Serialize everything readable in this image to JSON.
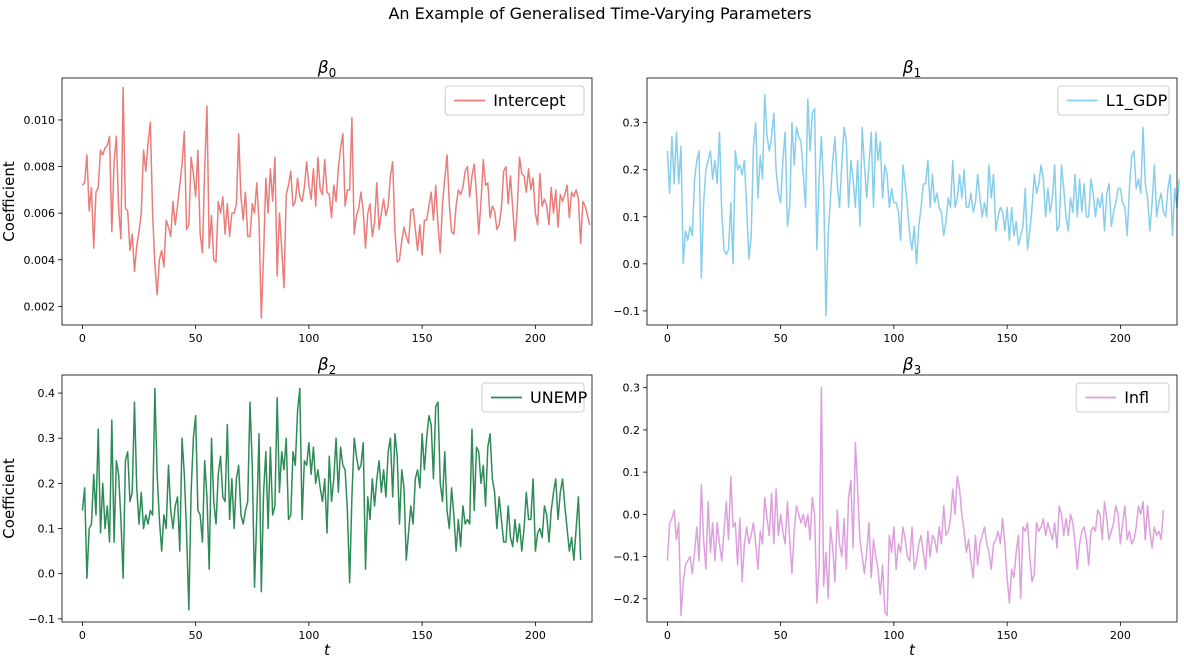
{
  "figure": {
    "title": "An Example of Generalised Time-Varying Parameters"
  },
  "chart_data": [
    {
      "type": "line",
      "title": "β0",
      "title_base": "β",
      "title_sub": "0",
      "xlabel": "",
      "ylabel": "Coefficient",
      "xlim": [
        -9,
        225
      ],
      "ylim": [
        0.0012,
        0.0118
      ],
      "xticks": [
        0,
        50,
        100,
        150,
        200
      ],
      "yticks": [
        0.002,
        0.004,
        0.006,
        0.008,
        0.01
      ],
      "ytick_labels": [
        "0.002",
        "0.004",
        "0.006",
        "0.008",
        "0.010"
      ],
      "legend_position": "upper right",
      "series": [
        {
          "name": "Intercept",
          "color": "#e97d7a",
          "x_start": 0,
          "values": [
            0.0072,
            0.0073,
            0.0085,
            0.0061,
            0.0071,
            0.0045,
            0.0069,
            0.0071,
            0.0087,
            0.0085,
            0.0088,
            0.0089,
            0.0093,
            0.0052,
            0.0082,
            0.0093,
            0.0062,
            0.0049,
            0.0114,
            0.0062,
            0.0061,
            0.0044,
            0.0051,
            0.0035,
            0.0046,
            0.0052,
            0.006,
            0.0087,
            0.0078,
            0.009,
            0.0099,
            0.006,
            0.0038,
            0.0025,
            0.004,
            0.0044,
            0.0037,
            0.0057,
            0.0054,
            0.005,
            0.0065,
            0.0055,
            0.0063,
            0.0072,
            0.0081,
            0.0095,
            0.0053,
            0.0055,
            0.0084,
            0.0077,
            0.0067,
            0.0087,
            0.0051,
            0.0043,
            0.0079,
            0.0106,
            0.0045,
            0.0059,
            0.004,
            0.0039,
            0.0065,
            0.006,
            0.0067,
            0.0051,
            0.0064,
            0.005,
            0.006,
            0.006,
            0.0064,
            0.0094,
            0.0067,
            0.0057,
            0.0069,
            0.005,
            0.005,
            0.0064,
            0.006,
            0.0073,
            0.0056,
            0.0015,
            0.0042,
            0.0075,
            0.006,
            0.0079,
            0.0065,
            0.0084,
            0.0033,
            0.006,
            0.0045,
            0.0028,
            0.0068,
            0.0072,
            0.0078,
            0.0063,
            0.0065,
            0.0075,
            0.0067,
            0.0065,
            0.0071,
            0.0082,
            0.0072,
            0.0066,
            0.0079,
            0.0063,
            0.0084,
            0.007,
            0.0068,
            0.0083,
            0.0069,
            0.0068,
            0.0058,
            0.0072,
            0.0065,
            0.0079,
            0.0088,
            0.0094,
            0.0063,
            0.007,
            0.007,
            0.0101,
            0.0051,
            0.0059,
            0.0062,
            0.0069,
            0.0061,
            0.0045,
            0.006,
            0.0064,
            0.005,
            0.0056,
            0.0073,
            0.0053,
            0.006,
            0.0066,
            0.0059,
            0.0063,
            0.0076,
            0.0082,
            0.0052,
            0.0039,
            0.004,
            0.0048,
            0.0054,
            0.005,
            0.0047,
            0.0061,
            0.0062,
            0.0053,
            0.0044,
            0.0055,
            0.0042,
            0.0057,
            0.0057,
            0.0063,
            0.0069,
            0.0057,
            0.0072,
            0.0055,
            0.0043,
            0.0064,
            0.0075,
            0.0085,
            0.0064,
            0.0052,
            0.0051,
            0.0063,
            0.007,
            0.0068,
            0.0071,
            0.0078,
            0.008,
            0.0067,
            0.0076,
            0.0081,
            0.0068,
            0.0051,
            0.0065,
            0.0083,
            0.0072,
            0.0073,
            0.0058,
            0.0063,
            0.0061,
            0.0053,
            0.0055,
            0.0062,
            0.0078,
            0.008,
            0.0064,
            0.0076,
            0.0062,
            0.0048,
            0.0062,
            0.0084,
            0.0077,
            0.0076,
            0.0069,
            0.0079,
            0.007,
            0.0075,
            0.006,
            0.0055,
            0.0077,
            0.0063,
            0.0066,
            0.0063,
            0.0055,
            0.0071,
            0.006,
            0.007,
            0.0054,
            0.0068,
            0.0065,
            0.0068,
            0.0072,
            0.0058,
            0.0069,
            0.0067,
            0.007,
            0.0066,
            0.0047,
            0.0065,
            0.0063,
            0.0059,
            0.0055
          ]
        }
      ]
    },
    {
      "type": "line",
      "title": "β1",
      "title_base": "β",
      "title_sub": "1",
      "xlabel": "",
      "ylabel": "",
      "xlim": [
        -9,
        225
      ],
      "ylim": [
        -0.13,
        0.395
      ],
      "xticks": [
        0,
        50,
        100,
        150,
        200
      ],
      "yticks": [
        -0.1,
        0.0,
        0.1,
        0.2,
        0.3
      ],
      "ytick_labels": [
        "−0.1",
        "0.0",
        "0.1",
        "0.2",
        "0.3"
      ],
      "legend_position": "upper right",
      "series": [
        {
          "name": "L1_GDP",
          "color": "#87ceeb",
          "x_start": 0,
          "values": [
            0.24,
            0.15,
            0.27,
            0.17,
            0.28,
            0.17,
            0.25,
            0.0,
            0.07,
            0.05,
            0.08,
            0.06,
            0.18,
            0.22,
            0.24,
            -0.03,
            0.13,
            0.2,
            0.22,
            0.24,
            0.18,
            0.22,
            0.17,
            0.28,
            0.11,
            0.03,
            0.02,
            0.03,
            0.13,
            0.0,
            0.24,
            0.2,
            0.21,
            0.19,
            0.22,
            0.12,
            0.01,
            0.06,
            0.25,
            0.3,
            0.14,
            0.23,
            0.18,
            0.36,
            0.27,
            0.24,
            0.27,
            0.32,
            0.2,
            0.15,
            0.13,
            0.22,
            0.28,
            0.08,
            0.12,
            0.3,
            0.21,
            0.29,
            0.27,
            0.26,
            0.19,
            0.12,
            0.35,
            0.24,
            0.32,
            0.33,
            0.03,
            0.18,
            0.27,
            0.16,
            -0.11,
            0.06,
            0.14,
            0.22,
            0.27,
            0.17,
            0.12,
            0.21,
            0.29,
            0.26,
            0.12,
            0.22,
            0.18,
            0.12,
            0.22,
            0.08,
            0.29,
            0.21,
            0.14,
            0.21,
            0.28,
            0.12,
            0.28,
            0.22,
            0.26,
            0.14,
            0.21,
            0.19,
            0.12,
            0.16,
            0.13,
            0.13,
            0.11,
            0.05,
            0.21,
            0.17,
            0.12,
            0.06,
            0.03,
            0.08,
            0.0,
            0.08,
            0.12,
            0.17,
            0.17,
            0.22,
            0.12,
            0.19,
            0.13,
            0.15,
            0.12,
            0.11,
            0.06,
            0.09,
            0.14,
            0.12,
            0.22,
            0.12,
            0.14,
            0.19,
            0.14,
            0.2,
            0.12,
            0.12,
            0.15,
            0.11,
            0.13,
            0.19,
            0.14,
            0.1,
            0.13,
            0.1,
            0.21,
            0.14,
            0.19,
            0.07,
            0.1,
            0.12,
            0.11,
            0.07,
            0.12,
            0.05,
            0.12,
            0.06,
            0.09,
            0.04,
            0.06,
            0.08,
            0.16,
            0.03,
            0.07,
            0.12,
            0.19,
            0.15,
            0.17,
            0.21,
            0.18,
            0.1,
            0.16,
            0.11,
            0.14,
            0.21,
            0.07,
            0.08,
            0.21,
            0.16,
            0.1,
            0.07,
            0.14,
            0.11,
            0.19,
            0.1,
            0.18,
            0.11,
            0.17,
            0.1,
            0.1,
            0.18,
            0.15,
            0.1,
            0.14,
            0.12,
            0.15,
            0.07,
            0.15,
            0.17,
            0.08,
            0.11,
            0.13,
            0.16,
            0.16,
            0.13,
            0.12,
            0.06,
            0.16,
            0.23,
            0.24,
            0.16,
            0.18,
            0.15,
            0.29,
            0.17,
            0.14,
            0.07,
            0.13,
            0.21,
            0.1,
            0.13,
            0.15,
            0.11,
            0.1,
            0.16,
            0.19,
            0.06,
            0.16,
            0.12,
            0.18
          ]
        }
      ]
    },
    {
      "type": "line",
      "title": "β2",
      "title_base": "β",
      "title_sub": "2",
      "xlabel": "t",
      "ylabel": "Coefficient",
      "xlim": [
        -9,
        225
      ],
      "ylim": [
        -0.107,
        0.44
      ],
      "xticks": [
        0,
        50,
        100,
        150,
        200
      ],
      "yticks": [
        -0.1,
        0.0,
        0.1,
        0.2,
        0.3,
        0.4
      ],
      "ytick_labels": [
        "−0.1",
        "0.0",
        "0.1",
        "0.2",
        "0.3",
        "0.4"
      ],
      "legend_position": "upper right",
      "series": [
        {
          "name": "UNEMP",
          "color": "#2e8b57",
          "x_start": 0,
          "values": [
            0.14,
            0.19,
            -0.01,
            0.1,
            0.11,
            0.22,
            0.13,
            0.32,
            0.09,
            0.2,
            0.1,
            0.15,
            0.07,
            0.34,
            0.07,
            0.25,
            0.22,
            0.12,
            -0.01,
            0.25,
            0.27,
            0.16,
            0.18,
            0.38,
            0.19,
            0.11,
            0.18,
            0.1,
            0.13,
            0.11,
            0.14,
            0.13,
            0.41,
            0.22,
            0.12,
            0.05,
            0.13,
            0.1,
            0.24,
            0.14,
            0.1,
            0.15,
            0.17,
            0.05,
            0.3,
            0.22,
            0.09,
            -0.08,
            0.18,
            0.3,
            0.35,
            0.14,
            0.13,
            0.07,
            0.25,
            0.17,
            0.01,
            0.3,
            0.16,
            0.11,
            0.22,
            0.26,
            0.17,
            0.16,
            0.33,
            0.12,
            0.21,
            0.1,
            0.21,
            0.24,
            0.13,
            0.11,
            0.14,
            0.16,
            0.38,
            0.24,
            -0.03,
            0.13,
            0.31,
            -0.04,
            0.18,
            0.27,
            0.1,
            0.28,
            0.13,
            0.15,
            0.39,
            0.18,
            0.27,
            0.23,
            0.3,
            0.12,
            0.13,
            0.27,
            0.24,
            0.36,
            0.41,
            0.12,
            0.25,
            0.24,
            0.29,
            0.22,
            0.28,
            0.2,
            0.23,
            0.19,
            0.16,
            0.21,
            0.09,
            0.26,
            0.16,
            0.21,
            0.3,
            0.18,
            0.28,
            0.24,
            0.23,
            0.14,
            -0.02,
            0.17,
            0.3,
            0.26,
            0.23,
            0.24,
            0.29,
            0.01,
            0.17,
            0.12,
            0.21,
            0.15,
            0.21,
            0.25,
            0.18,
            0.23,
            0.17,
            0.27,
            0.3,
            0.17,
            0.31,
            0.26,
            0.11,
            0.23,
            0.19,
            0.03,
            0.09,
            0.15,
            0.11,
            0.21,
            0.23,
            0.19,
            0.31,
            0.23,
            0.3,
            0.35,
            0.33,
            0.21,
            0.37,
            0.38,
            0.2,
            0.16,
            0.27,
            0.14,
            0.1,
            0.19,
            0.13,
            0.05,
            0.12,
            0.06,
            0.15,
            0.11,
            0.12,
            0.11,
            0.32,
            0.14,
            0.28,
            0.27,
            0.2,
            0.24,
            0.15,
            0.28,
            0.31,
            0.21,
            0.18,
            0.1,
            0.17,
            0.12,
            0.07,
            0.07,
            0.15,
            0.08,
            0.06,
            0.12,
            0.07,
            0.11,
            0.05,
            0.1,
            0.18,
            0.12,
            0.12,
            0.21,
            0.05,
            0.09,
            0.1,
            0.08,
            0.15,
            0.13,
            0.07,
            0.14,
            0.18,
            0.21,
            0.12,
            0.18,
            0.21,
            0.15,
            0.1,
            0.05,
            0.08,
            0.03,
            0.1,
            0.17,
            0.03
          ]
        }
      ]
    },
    {
      "type": "line",
      "title": "β3",
      "title_base": "β",
      "title_sub": "3",
      "xlabel": "t",
      "ylabel": "",
      "xlim": [
        -9,
        225
      ],
      "ylim": [
        -0.255,
        0.33
      ],
      "xticks": [
        0,
        50,
        100,
        150,
        200
      ],
      "yticks": [
        -0.2,
        -0.1,
        0.0,
        0.1,
        0.2,
        0.3
      ],
      "ytick_labels": [
        "−0.2",
        "−0.1",
        "0.0",
        "0.1",
        "0.2",
        "0.3"
      ],
      "legend_position": "upper right",
      "series": [
        {
          "name": "Infl",
          "color": "#dda0dd",
          "x_start": 0,
          "values": [
            -0.11,
            -0.02,
            -0.01,
            0.01,
            -0.06,
            -0.02,
            -0.24,
            -0.16,
            -0.12,
            -0.11,
            -0.1,
            -0.14,
            -0.09,
            -0.03,
            -0.11,
            0.07,
            -0.06,
            -0.13,
            0.03,
            -0.09,
            -0.02,
            -0.11,
            -0.02,
            -0.07,
            -0.11,
            -0.04,
            0.03,
            -0.06,
            0.09,
            -0.03,
            -0.02,
            -0.12,
            -0.01,
            -0.16,
            -0.07,
            -0.03,
            -0.07,
            -0.05,
            -0.02,
            -0.07,
            -0.13,
            -0.04,
            -0.07,
            0.04,
            -0.01,
            -0.05,
            0.05,
            -0.07,
            0.06,
            -0.05,
            0.0,
            -0.04,
            -0.07,
            0.03,
            -0.06,
            -0.14,
            -0.04,
            0.02,
            0.0,
            -0.02,
            0.0,
            -0.03,
            0.0,
            -0.06,
            0.04,
            0.0,
            -0.21,
            -0.12,
            0.3,
            -0.17,
            -0.09,
            -0.2,
            -0.03,
            -0.08,
            -0.16,
            0.01,
            -0.07,
            -0.1,
            -0.01,
            -0.13,
            0.04,
            0.08,
            -0.08,
            0.17,
            0.06,
            -0.06,
            -0.1,
            -0.14,
            -0.09,
            -0.02,
            -0.15,
            -0.06,
            -0.1,
            -0.13,
            -0.19,
            -0.12,
            -0.23,
            -0.24,
            -0.05,
            -0.09,
            -0.03,
            -0.13,
            -0.07,
            -0.09,
            -0.03,
            -0.06,
            -0.1,
            -0.11,
            -0.03,
            -0.13,
            -0.11,
            -0.07,
            -0.05,
            -0.09,
            -0.13,
            -0.04,
            -0.1,
            -0.05,
            -0.06,
            -0.09,
            -0.03,
            -0.07,
            0.02,
            -0.05,
            -0.04,
            -0.01,
            0.06,
            0.0,
            0.09,
            0.06,
            0.0,
            -0.04,
            -0.09,
            -0.06,
            -0.11,
            -0.15,
            -0.05,
            -0.12,
            -0.07,
            -0.05,
            -0.03,
            -0.07,
            -0.09,
            -0.13,
            -0.07,
            -0.06,
            -0.04,
            -0.07,
            -0.01,
            -0.07,
            -0.15,
            -0.21,
            -0.13,
            -0.15,
            -0.09,
            -0.05,
            -0.2,
            -0.03,
            -0.04,
            -0.02,
            -0.1,
            -0.16,
            -0.14,
            -0.02,
            -0.04,
            -0.03,
            -0.01,
            -0.05,
            -0.02,
            -0.04,
            -0.06,
            -0.02,
            -0.08,
            0.02,
            0.0,
            -0.05,
            -0.01,
            -0.05,
            0.0,
            -0.02,
            -0.07,
            -0.13,
            -0.07,
            -0.04,
            -0.03,
            -0.06,
            -0.12,
            -0.04,
            -0.03,
            -0.04,
            0.01,
            0.0,
            -0.06,
            0.03,
            -0.01,
            -0.06,
            -0.04,
            -0.02,
            0.02,
            0.0,
            -0.07,
            -0.02,
            0.02,
            -0.06,
            -0.04,
            -0.07,
            -0.06,
            -0.03,
            0.02,
            0.0,
            0.03,
            -0.06,
            0.02,
            -0.04,
            -0.08,
            -0.03,
            -0.05,
            -0.04,
            -0.06,
            0.01
          ]
        }
      ]
    }
  ]
}
